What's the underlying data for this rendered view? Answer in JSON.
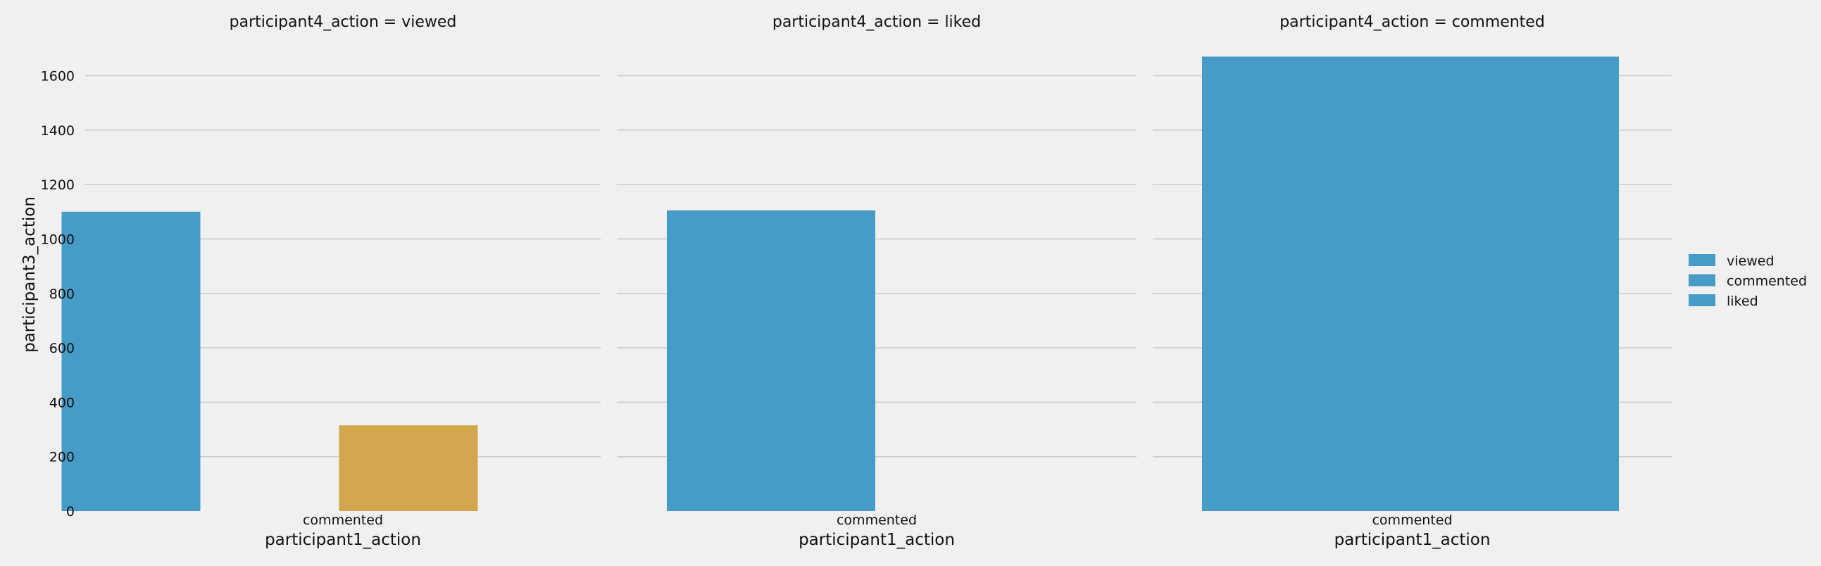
{
  "chart_data": {
    "type": "bar",
    "facet_by": "participant4_action",
    "xlabel": "participant1_action",
    "ylabel": "participant3_action",
    "ylim": [
      0,
      1650
    ],
    "yticks": [
      0,
      200,
      400,
      600,
      800,
      1000,
      1200,
      1400,
      1600
    ],
    "grid": "horizontal",
    "legend_placement": "right",
    "legend": [
      {
        "label": "viewed",
        "color": "#479bc7"
      },
      {
        "label": "commented",
        "color": "#479bc7"
      },
      {
        "label": "liked",
        "color": "#479bc7"
      }
    ],
    "colors": {
      "blue": "#479bc7",
      "gold": "#d1a64c",
      "background": "#f0f0f0",
      "grid": "#cbcbcb"
    },
    "facets": [
      {
        "title": "participant4_action = viewed",
        "category": "commented",
        "bars": [
          {
            "slot": 0,
            "value": 1100,
            "color": "#479bc7"
          },
          {
            "slot": 2,
            "value": 315,
            "color": "#d1a64c"
          }
        ]
      },
      {
        "title": "participant4_action = liked",
        "category": "commented",
        "bars": [
          {
            "slot": 0,
            "value": 1105,
            "color": "#479bc7"
          }
        ]
      },
      {
        "title": "participant4_action = commented",
        "category": "commented",
        "bars": [
          {
            "slot": 0,
            "value": 1670,
            "color": "#479bc7"
          }
        ]
      }
    ]
  }
}
